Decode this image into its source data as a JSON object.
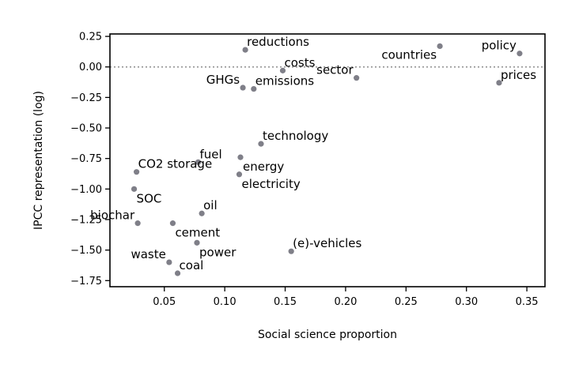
{
  "chart_data": {
    "type": "scatter",
    "title": "",
    "xlabel": "Social science proportion",
    "ylabel": "IPCC representation (log)",
    "xlim": [
      0.005,
      0.365
    ],
    "ylim": [
      -1.8,
      0.27
    ],
    "xticks": [
      0.05,
      0.1,
      0.15,
      0.2,
      0.25,
      0.3,
      0.35
    ],
    "xtick_labels": [
      "0.05",
      "0.10",
      "0.15",
      "0.20",
      "0.25",
      "0.30",
      "0.35"
    ],
    "yticks": [
      0.25,
      0.0,
      -0.25,
      -0.5,
      -0.75,
      -1.0,
      -1.25,
      -1.5,
      -1.75
    ],
    "ytick_labels": [
      "0.25",
      "0.00",
      "−0.25",
      "−0.50",
      "−0.75",
      "−1.00",
      "−1.25",
      "−1.50",
      "−1.75"
    ],
    "reference_line": {
      "y": 0.0,
      "style": "dotted",
      "color": "#999999"
    },
    "grid": false,
    "legend": "none",
    "point_color": "#7f7f88",
    "points": [
      {
        "label": "reductions",
        "x": 0.117,
        "y": 0.14,
        "label_pos": "above-right"
      },
      {
        "label": "countries",
        "x": 0.278,
        "y": 0.17,
        "label_pos": "below-left"
      },
      {
        "label": "policy",
        "x": 0.344,
        "y": 0.11,
        "label_pos": "above-left"
      },
      {
        "label": "costs",
        "x": 0.148,
        "y": -0.03,
        "label_pos": "above-right"
      },
      {
        "label": "sector",
        "x": 0.209,
        "y": -0.09,
        "label_pos": "above-left"
      },
      {
        "label": "prices",
        "x": 0.327,
        "y": -0.13,
        "label_pos": "above-right"
      },
      {
        "label": "GHGs",
        "x": 0.115,
        "y": -0.17,
        "label_pos": "above-left"
      },
      {
        "label": "emissions",
        "x": 0.124,
        "y": -0.18,
        "label_pos": "above-right"
      },
      {
        "label": "technology",
        "x": 0.13,
        "y": -0.63,
        "label_pos": "above-right"
      },
      {
        "label": "fuel",
        "x": 0.078,
        "y": -0.78,
        "label_pos": "above-right"
      },
      {
        "label": "energy",
        "x": 0.113,
        "y": -0.74,
        "label_pos": "below-right"
      },
      {
        "label": "CO2 storage",
        "x": 0.027,
        "y": -0.86,
        "label_pos": "above-right"
      },
      {
        "label": "electricity",
        "x": 0.112,
        "y": -0.88,
        "label_pos": "below-right"
      },
      {
        "label": "SOC",
        "x": 0.025,
        "y": -1.0,
        "label_pos": "below-right"
      },
      {
        "label": "oil",
        "x": 0.081,
        "y": -1.2,
        "label_pos": "above-right"
      },
      {
        "label": "biochar",
        "x": 0.028,
        "y": -1.28,
        "label_pos": "above-left"
      },
      {
        "label": "cement",
        "x": 0.057,
        "y": -1.28,
        "label_pos": "below-right"
      },
      {
        "label": "power",
        "x": 0.077,
        "y": -1.44,
        "label_pos": "below-right"
      },
      {
        "label": "(e)-vehicles",
        "x": 0.155,
        "y": -1.51,
        "label_pos": "above-right"
      },
      {
        "label": "waste",
        "x": 0.054,
        "y": -1.6,
        "label_pos": "above-left"
      },
      {
        "label": "coal",
        "x": 0.061,
        "y": -1.69,
        "label_pos": "above-right"
      }
    ]
  }
}
